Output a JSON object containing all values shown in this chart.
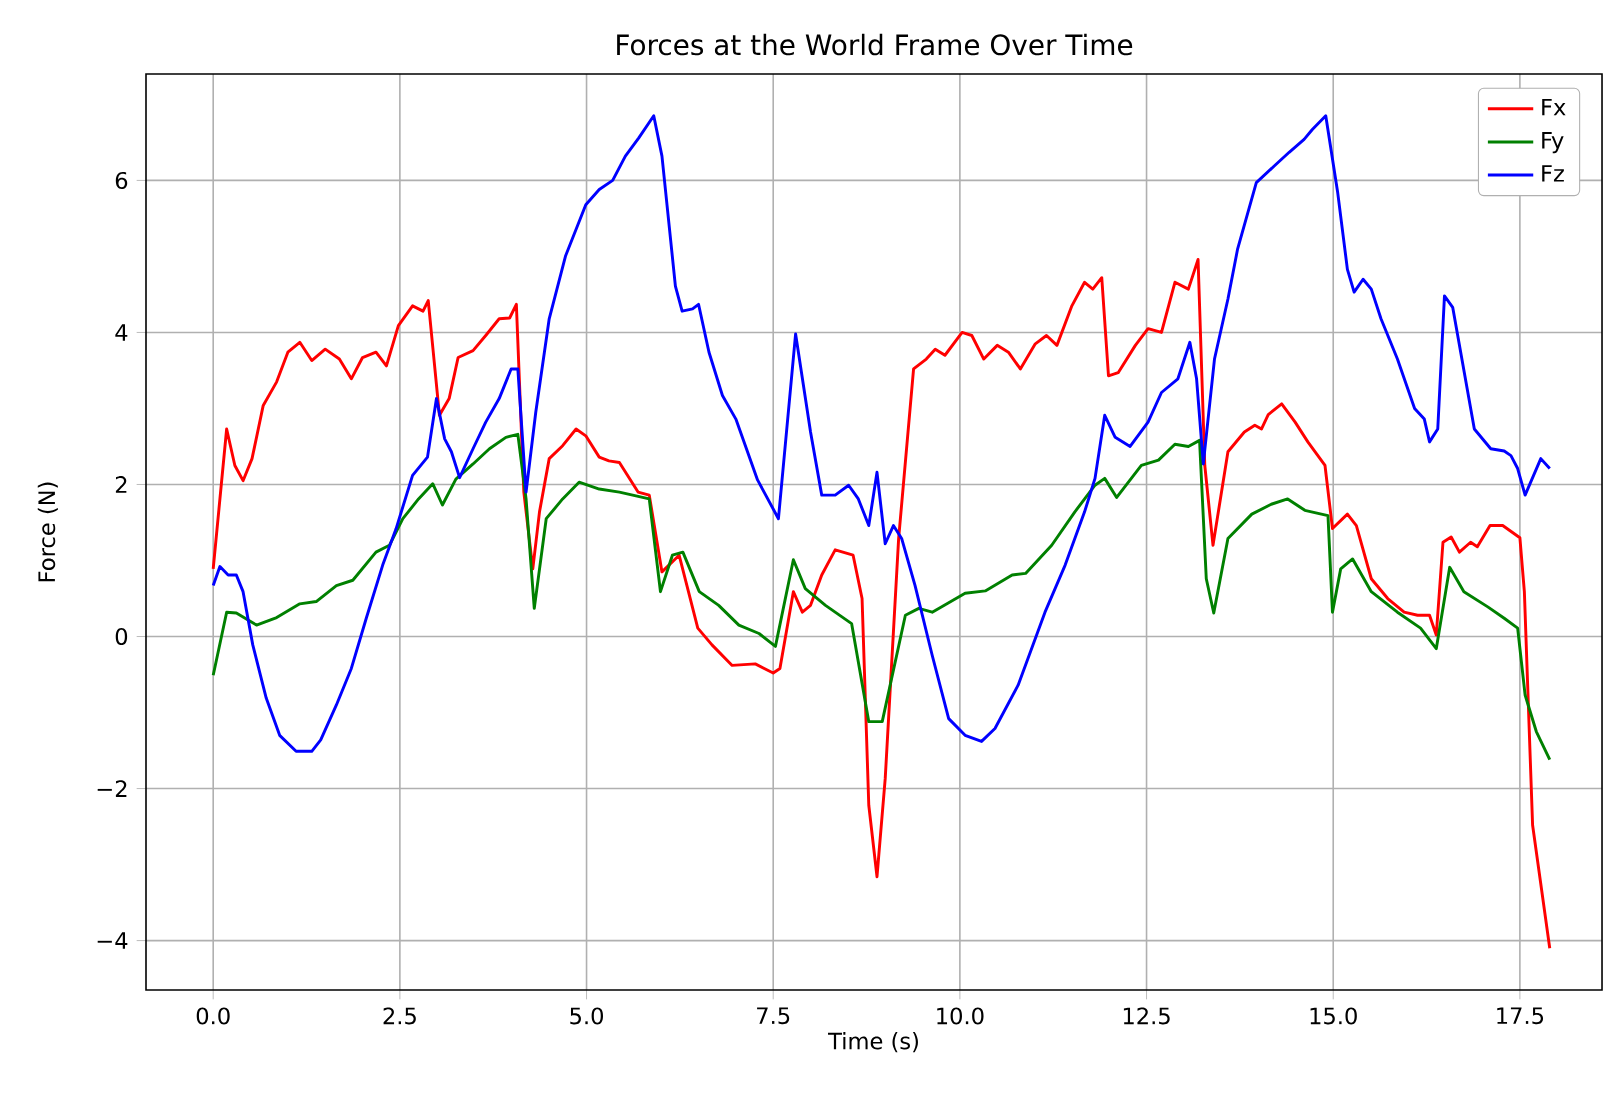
{
  "chart_data": {
    "type": "line",
    "title": "Forces at the World Frame Over Time",
    "xlabel": "Time (s)",
    "ylabel": "Force (N)",
    "xlim": [
      -0.9,
      18.6
    ],
    "ylim": [
      -4.65,
      7.4
    ],
    "xticks": [
      {
        "value": 0,
        "label": "0.0"
      },
      {
        "value": 2.5,
        "label": "2.5"
      },
      {
        "value": 5,
        "label": "5.0"
      },
      {
        "value": 7.5,
        "label": "7.5"
      },
      {
        "value": 10,
        "label": "10.0"
      },
      {
        "value": 12.5,
        "label": "12.5"
      },
      {
        "value": 15,
        "label": "15.0"
      },
      {
        "value": 17.5,
        "label": "17.5"
      }
    ],
    "yticks": [
      {
        "value": -4,
        "label": "−4"
      },
      {
        "value": -2,
        "label": "−2"
      },
      0,
      2,
      4,
      6
    ],
    "grid": true,
    "legend": "top right",
    "series": [
      {
        "name": "Fx",
        "color": "#ff0000",
        "x": [
          0,
          0.18,
          0.29,
          0.4,
          0.52,
          0.67,
          0.85,
          1.0,
          1.16,
          1.32,
          1.5,
          1.69,
          1.85,
          2.0,
          2.18,
          2.32,
          2.48,
          2.67,
          2.81,
          2.88,
          3.03,
          3.16,
          3.28,
          3.48,
          3.65,
          3.83,
          3.97,
          4.06,
          4.16,
          4.28,
          4.37,
          4.5,
          4.68,
          4.86,
          4.99,
          5.17,
          5.3,
          5.44,
          5.69,
          5.84,
          6.01,
          6.24,
          6.49,
          6.68,
          6.95,
          7.26,
          7.5,
          7.59,
          7.77,
          7.89,
          8.0,
          8.15,
          8.33,
          8.57,
          8.69,
          8.78,
          8.89,
          9.0,
          9.18,
          9.38,
          9.55,
          9.67,
          9.8,
          10.03,
          10.16,
          10.32,
          10.5,
          10.65,
          10.81,
          11.01,
          11.16,
          11.3,
          11.5,
          11.67,
          11.78,
          11.9,
          11.99,
          12.12,
          12.35,
          12.52,
          12.7,
          12.88,
          13.06,
          13.19,
          13.28,
          13.39,
          13.59,
          13.81,
          13.95,
          14.04,
          14.13,
          14.31,
          14.49,
          14.66,
          14.89,
          14.99,
          15.19,
          15.31,
          15.51,
          15.73,
          15.95,
          16.13,
          16.29,
          16.38,
          16.47,
          16.58,
          16.69,
          16.84,
          16.93,
          17.1,
          17.27,
          17.5,
          17.56,
          17.67,
          17.9
        ],
        "values": [
          0.89,
          2.73,
          2.25,
          2.05,
          2.34,
          3.04,
          3.35,
          3.74,
          3.87,
          3.63,
          3.78,
          3.65,
          3.39,
          3.67,
          3.74,
          3.56,
          4.09,
          4.35,
          4.28,
          4.42,
          2.91,
          3.13,
          3.67,
          3.76,
          3.96,
          4.18,
          4.19,
          4.37,
          1.9,
          0.89,
          1.64,
          2.34,
          2.51,
          2.73,
          2.64,
          2.36,
          2.31,
          2.29,
          1.9,
          1.86,
          0.85,
          1.07,
          0.11,
          -0.11,
          -0.38,
          -0.36,
          -0.48,
          -0.42,
          0.59,
          0.32,
          0.41,
          0.81,
          1.14,
          1.07,
          0.5,
          -2.22,
          -3.16,
          -1.87,
          1.29,
          3.52,
          3.65,
          3.78,
          3.7,
          4.0,
          3.96,
          3.65,
          3.83,
          3.74,
          3.52,
          3.85,
          3.96,
          3.83,
          4.35,
          4.66,
          4.57,
          4.72,
          3.43,
          3.47,
          3.83,
          4.05,
          4.0,
          4.66,
          4.57,
          4.96,
          2.25,
          1.2,
          2.43,
          2.69,
          2.78,
          2.73,
          2.92,
          3.06,
          2.82,
          2.56,
          2.25,
          1.42,
          1.61,
          1.46,
          0.76,
          0.5,
          0.32,
          0.28,
          0.28,
          0.02,
          1.24,
          1.31,
          1.11,
          1.24,
          1.18,
          1.46,
          1.46,
          1.3,
          0.59,
          -2.48,
          -4.1
        ]
      },
      {
        "name": "Fy",
        "color": "#008000",
        "x": [
          0,
          0.18,
          0.31,
          0.58,
          0.85,
          1.16,
          1.38,
          1.65,
          1.87,
          2.18,
          2.36,
          2.54,
          2.75,
          2.94,
          3.07,
          3.25,
          3.48,
          3.7,
          3.92,
          4.08,
          4.19,
          4.3,
          4.46,
          4.68,
          4.9,
          5.17,
          5.44,
          5.84,
          5.99,
          6.15,
          6.29,
          6.51,
          6.77,
          7.04,
          7.31,
          7.53,
          7.77,
          7.93,
          8.2,
          8.55,
          8.78,
          8.96,
          9.27,
          9.45,
          9.63,
          10.07,
          10.34,
          10.7,
          10.88,
          11.23,
          11.54,
          11.81,
          11.94,
          12.1,
          12.43,
          12.66,
          12.88,
          13.06,
          13.21,
          13.3,
          13.4,
          13.59,
          13.91,
          14.17,
          14.39,
          14.62,
          14.93,
          14.99,
          15.1,
          15.26,
          15.51,
          15.86,
          16.17,
          16.38,
          16.56,
          16.75,
          17.07,
          17.29,
          17.47,
          17.57,
          17.72,
          17.9
        ],
        "values": [
          -0.51,
          0.32,
          0.31,
          0.15,
          0.25,
          0.43,
          0.46,
          0.67,
          0.74,
          1.11,
          1.2,
          1.55,
          1.81,
          2.01,
          1.73,
          2.07,
          2.27,
          2.47,
          2.62,
          2.66,
          1.81,
          0.37,
          1.55,
          1.81,
          2.03,
          1.94,
          1.9,
          1.81,
          0.59,
          1.07,
          1.11,
          0.59,
          0.41,
          0.15,
          0.04,
          -0.13,
          1.01,
          0.63,
          0.41,
          0.17,
          -1.12,
          -1.12,
          0.28,
          0.37,
          0.32,
          0.57,
          0.6,
          0.81,
          0.83,
          1.2,
          1.64,
          1.99,
          2.08,
          1.83,
          2.25,
          2.32,
          2.53,
          2.5,
          2.58,
          0.76,
          0.31,
          1.29,
          1.61,
          1.74,
          1.81,
          1.66,
          1.59,
          0.32,
          0.89,
          1.02,
          0.59,
          0.32,
          0.11,
          -0.16,
          0.91,
          0.59,
          0.39,
          0.24,
          0.11,
          -0.77,
          -1.25,
          -1.62
        ]
      },
      {
        "name": "Fz",
        "color": "#0000ff",
        "x": [
          0,
          0.09,
          0.2,
          0.31,
          0.4,
          0.53,
          0.71,
          0.89,
          1.11,
          1.32,
          1.44,
          1.65,
          1.85,
          2.05,
          2.27,
          2.45,
          2.67,
          2.87,
          2.99,
          3.1,
          3.19,
          3.3,
          3.48,
          3.65,
          3.83,
          3.99,
          4.08,
          4.19,
          4.32,
          4.5,
          4.72,
          4.99,
          5.17,
          5.35,
          5.52,
          5.7,
          5.9,
          6.01,
          6.19,
          6.28,
          6.42,
          6.5,
          6.64,
          6.82,
          7.0,
          7.29,
          7.57,
          7.8,
          8.0,
          8.15,
          8.33,
          8.51,
          8.64,
          8.78,
          8.89,
          9.0,
          9.11,
          9.22,
          9.4,
          9.63,
          9.85,
          10.07,
          10.29,
          10.47,
          10.78,
          11.14,
          11.41,
          11.67,
          11.81,
          11.94,
          12.08,
          12.28,
          12.52,
          12.7,
          12.92,
          13.08,
          13.17,
          13.26,
          13.41,
          13.59,
          13.72,
          13.97,
          14.21,
          14.41,
          14.61,
          14.72,
          14.9,
          15.06,
          15.19,
          15.28,
          15.4,
          15.51,
          15.64,
          15.86,
          16.09,
          16.22,
          16.29,
          16.4,
          16.49,
          16.6,
          16.89,
          17.11,
          17.29,
          17.38,
          17.47,
          17.57,
          17.78,
          17.9
        ],
        "values": [
          0.67,
          0.92,
          0.81,
          0.81,
          0.59,
          -0.11,
          -0.81,
          -1.3,
          -1.51,
          -1.51,
          -1.36,
          -0.9,
          -0.42,
          0.24,
          0.94,
          1.42,
          2.12,
          2.36,
          3.13,
          2.6,
          2.43,
          2.09,
          2.47,
          2.82,
          3.13,
          3.52,
          3.52,
          1.9,
          2.95,
          4.18,
          5.01,
          5.68,
          5.88,
          6.0,
          6.32,
          6.56,
          6.85,
          6.32,
          4.61,
          4.28,
          4.31,
          4.37,
          3.74,
          3.17,
          2.86,
          2.06,
          1.55,
          3.98,
          2.69,
          1.86,
          1.86,
          1.99,
          1.81,
          1.46,
          2.16,
          1.22,
          1.46,
          1.29,
          0.67,
          -0.25,
          -1.08,
          -1.3,
          -1.38,
          -1.21,
          -0.64,
          0.32,
          0.94,
          1.64,
          2.08,
          2.91,
          2.62,
          2.5,
          2.82,
          3.21,
          3.39,
          3.87,
          3.39,
          2.27,
          3.65,
          4.44,
          5.1,
          5.97,
          6.19,
          6.37,
          6.54,
          6.67,
          6.85,
          5.84,
          4.83,
          4.53,
          4.7,
          4.57,
          4.18,
          3.65,
          3.0,
          2.86,
          2.56,
          2.73,
          4.48,
          4.33,
          2.73,
          2.47,
          2.44,
          2.38,
          2.21,
          1.86,
          2.34,
          2.21
        ]
      }
    ]
  }
}
